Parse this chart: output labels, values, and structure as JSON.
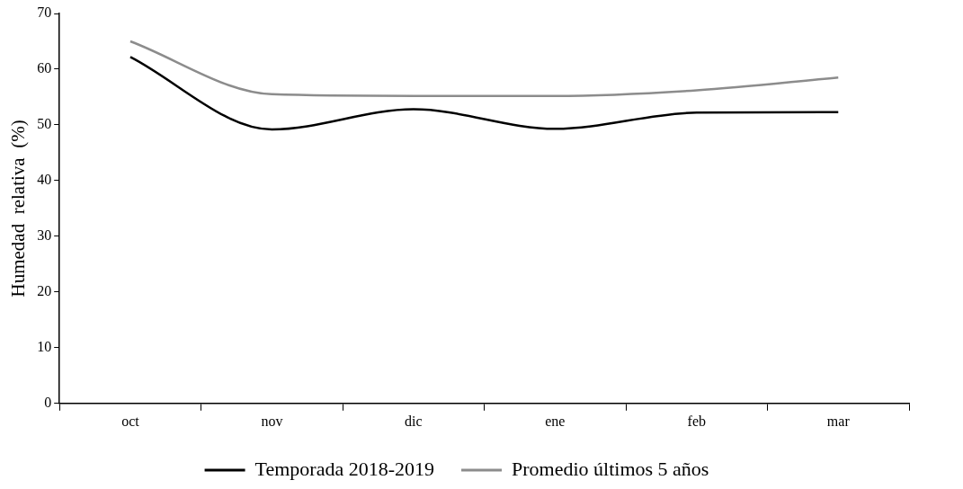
{
  "chart_data": {
    "type": "line",
    "ylabel": "Humedad  relativa  (%)",
    "categories": [
      "oct",
      "nov",
      "dic",
      "ene",
      "feb",
      "mar"
    ],
    "series": [
      {
        "name": "Temporada 2018-2019",
        "color": "#000000",
        "values": [
          62.2,
          49.2,
          52.8,
          49.3,
          52.2,
          52.3
        ]
      },
      {
        "name": "Promedio últimos 5 años",
        "color": "#8c8c8c",
        "values": [
          65,
          55.5,
          55.2,
          55.2,
          56.2,
          58.5
        ]
      }
    ],
    "ylim": [
      0,
      70
    ],
    "yticks": [
      0,
      10,
      20,
      30,
      40,
      50,
      60,
      70
    ],
    "grid": false,
    "legend": "bottom",
    "marker": "none",
    "line_style": "solid"
  }
}
